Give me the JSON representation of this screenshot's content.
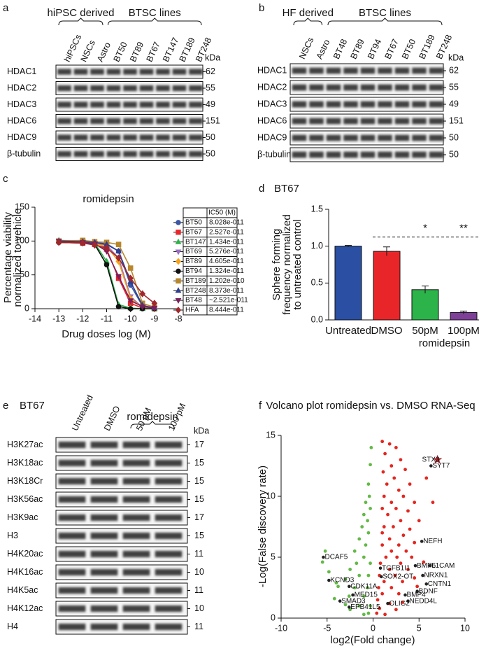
{
  "panels": [
    {
      "letter": "a",
      "groups": [
        "hiPSC derived",
        "BTSC lines"
      ],
      "lanes": [
        "hiPSCs",
        "NSCs",
        "Astro",
        "BT50",
        "BT89",
        "BT67",
        "BT147",
        "BT189",
        "BT248"
      ],
      "unit": "kDa",
      "rows": [
        {
          "label": "HDAC1",
          "kda": 62
        },
        {
          "label": "HDAC2",
          "kda": 55
        },
        {
          "label": "HDAC3",
          "kda": 49
        },
        {
          "label": "HDAC6",
          "kda": 151
        },
        {
          "label": "HDAC9",
          "kda": 50
        },
        {
          "label": "β-tubulin",
          "kda": 50
        }
      ]
    },
    {
      "letter": "b",
      "groups": [
        "HF derived",
        "BTSC lines"
      ],
      "lanes": [
        "NSCs",
        "Astro",
        "BT48",
        "BT89",
        "BT94",
        "BT67",
        "BT50",
        "BT189",
        "BT248"
      ],
      "unit": "kDa",
      "rows": [
        {
          "label": "HDAC1",
          "kda": 62
        },
        {
          "label": "HDAC2",
          "kda": 55
        },
        {
          "label": "HDAC3",
          "kda": 49
        },
        {
          "label": "HDAC6",
          "kda": 151
        },
        {
          "label": "HDAC9",
          "kda": 50
        },
        {
          "label": "β-tubulin",
          "kda": 50
        }
      ]
    },
    {
      "letter": "e",
      "title": "BT67",
      "groups": [
        "romidepsin"
      ],
      "lanes": [
        "Untreated",
        "DMSO",
        "50 pM",
        "100 pM"
      ],
      "unit": "kDa",
      "rows": [
        {
          "label": "H3K27ac",
          "kda": 17
        },
        {
          "label": "H3K18ac",
          "kda": 15
        },
        {
          "label": "H3K18Cr",
          "kda": 15
        },
        {
          "label": "H3K56ac",
          "kda": 15
        },
        {
          "label": "H3K9ac",
          "kda": 17
        },
        {
          "label": "H3",
          "kda": 15
        },
        {
          "label": "H4K20ac",
          "kda": 11
        },
        {
          "label": "H4K16ac",
          "kda": 10
        },
        {
          "label": "H4K5ac",
          "kda": 11
        },
        {
          "label": "H4K12ac",
          "kda": 10
        },
        {
          "label": "H4",
          "kda": 11
        }
      ]
    }
  ],
  "chart_data": [
    {
      "type": "line",
      "letter": "c",
      "title": "romidepsin",
      "x_label": "Drug doses log (M)",
      "y_label": [
        "Percentage viability",
        "normalized to vehicle"
      ],
      "xlim": [
        -14,
        -8
      ],
      "xticks": [
        -14,
        -13,
        -12,
        -11,
        -10,
        -9,
        -8
      ],
      "ylim": [
        0,
        150
      ],
      "yticks": [
        0,
        50,
        100,
        150
      ],
      "table_header": "IC50 (M)",
      "x": [
        -13,
        -12,
        -11.5,
        -11,
        -10.5,
        -10,
        -9.5,
        -9
      ],
      "series": [
        {
          "name": "BT50",
          "ic50": "8.028e-011",
          "color": "#3a56a5",
          "marker": "circle",
          "values": [
            100,
            99,
            98,
            96,
            85,
            35,
            4,
            1
          ]
        },
        {
          "name": "BT67",
          "ic50": "2.527e-011",
          "color": "#e8262a",
          "marker": "square",
          "values": [
            100,
            97,
            95,
            88,
            45,
            8,
            1,
            0
          ]
        },
        {
          "name": "BT147",
          "ic50": "1.434e-011",
          "color": "#2cb34a",
          "marker": "triangle",
          "values": [
            101,
            100,
            97,
            70,
            6,
            1,
            0,
            0
          ]
        },
        {
          "name": "BT69",
          "ic50": "5.276e-011",
          "color": "#9b6fc4",
          "marker": "triangle-down",
          "values": [
            100,
            99,
            97,
            94,
            75,
            18,
            2,
            0
          ]
        },
        {
          "name": "BT89",
          "ic50": "4.605e-011",
          "color": "#f7a21b",
          "marker": "diamond",
          "values": [
            100,
            98,
            96,
            92,
            70,
            15,
            2,
            0
          ]
        },
        {
          "name": "BT94",
          "ic50": "1.324e-011",
          "color": "#111111",
          "marker": "circle",
          "values": [
            98,
            97,
            95,
            65,
            3,
            0,
            0,
            0
          ]
        },
        {
          "name": "BT189",
          "ic50": "1.202e-010",
          "color": "#b8862b",
          "marker": "square",
          "values": [
            100,
            101,
            99,
            98,
            95,
            60,
            8,
            2
          ]
        },
        {
          "name": "BT248",
          "ic50": "8.373e-011",
          "color": "#2e3d8f",
          "marker": "triangle",
          "values": [
            100,
            99,
            98,
            95,
            85,
            40,
            5,
            1
          ]
        },
        {
          "name": "BT48",
          "ic50": "~2.521e-011",
          "color": "#7a1f5c",
          "marker": "triangle-down",
          "values": [
            100,
            98,
            96,
            85,
            48,
            12,
            3,
            1
          ]
        },
        {
          "name": "HFA",
          "ic50": "8.444e-011",
          "color": "#a0282d",
          "marker": "diamond",
          "values": [
            98,
            97,
            94,
            90,
            75,
            45,
            22,
            8
          ]
        }
      ]
    },
    {
      "type": "bar",
      "letter": "d",
      "title": "BT67",
      "y_label": [
        "Sphere forming",
        "frequency normalized",
        "to untreated control"
      ],
      "categories": [
        "Untreated",
        "DMSO",
        "50pM",
        "100pM"
      ],
      "x_group_label": "romidepsin",
      "values": [
        1.0,
        0.93,
        0.41,
        0.1
      ],
      "errors": [
        0.01,
        0.06,
        0.05,
        0.02
      ],
      "colors": [
        "#2a4fa3",
        "#e8262a",
        "#2cb34a",
        "#7e3f98"
      ],
      "significance": [
        null,
        null,
        "*",
        "**"
      ],
      "ylim": [
        0,
        1.5
      ],
      "yticks": [
        {
          "value": 0,
          "label": "0.0"
        },
        {
          "value": 0.5,
          "label": "0.5"
        },
        {
          "value": 1,
          "label": "1.0"
        },
        {
          "value": 1.5,
          "label": "1.5"
        }
      ]
    },
    {
      "type": "scatter",
      "letter": "f",
      "title": "Volcano plot romidepsin vs. DMSO RNA-Seq",
      "x_label": "log2(Fold change)",
      "y_label": "-Log(False discovery rate)",
      "xlim": [
        -10,
        10
      ],
      "xticks": [
        -10,
        -5,
        0,
        5,
        10
      ],
      "ylim": [
        0,
        15
      ],
      "yticks": [
        0,
        5,
        10,
        15
      ],
      "series": [
        {
          "color": "#63b946",
          "x": [
            -0.2,
            -0.3,
            -0.5,
            -0.4,
            -0.8,
            -0.3,
            -1,
            -0.6,
            -1.2,
            -0.5,
            -1.5,
            -0.8,
            -2,
            -1,
            -0.3,
            -1.8,
            -2.5,
            -0.5,
            -1.5,
            -3,
            -0.6,
            -2,
            -3.8,
            -1,
            -2.6,
            -4.2,
            -0.3,
            -1.5,
            -3,
            -0.5,
            -1,
            -5.2,
            -5.5,
            -4.8,
            -4,
            -2.5
          ],
          "values": [
            14,
            12.6,
            11,
            10,
            9.5,
            9,
            8.5,
            8,
            7.5,
            7,
            6.5,
            6,
            5.5,
            5,
            4.5,
            4.5,
            4,
            3.5,
            3.5,
            3.2,
            2.5,
            2.5,
            2.6,
            1.8,
            1.8,
            1.6,
            1,
            1,
            1.1,
            0.4,
            0.3,
            5.5,
            4.6,
            3.8,
            2.9,
            0.7
          ]
        },
        {
          "color": "#e4261f",
          "x": [
            1,
            1.8,
            2.5,
            1.3,
            3,
            2,
            1.1,
            3.5,
            2.3,
            4,
            1.5,
            2.8,
            1.2,
            3.3,
            2,
            4.5,
            1,
            2.5,
            3.8,
            1.6,
            3,
            5,
            1.2,
            2.2,
            4,
            1,
            3.3,
            1.8,
            2.8,
            4.5,
            1,
            2,
            3.6,
            1.4,
            2.6,
            4.2,
            0.8,
            3,
            5.5,
            1.8,
            3.8,
            0.7,
            2.4,
            4.5,
            1.2,
            3.2,
            0.6,
            2,
            4.8,
            1,
            2.8,
            0.5,
            1.8,
            3.2,
            0.7,
            2.5,
            0.4,
            1.3,
            6.5,
            5.8
          ],
          "values": [
            14.5,
            14.3,
            14,
            13.5,
            13,
            12.5,
            12,
            12.2,
            11.5,
            11,
            11,
            10.5,
            10,
            10,
            9.5,
            9.5,
            9,
            9,
            8.8,
            8.5,
            8,
            8,
            7.5,
            7.5,
            7.3,
            7,
            6.8,
            6.5,
            6,
            6.2,
            6,
            5.5,
            5.5,
            5,
            5,
            5,
            4.5,
            4.5,
            4.6,
            4,
            4,
            3.5,
            3.5,
            3.3,
            3,
            3,
            2.5,
            2.5,
            2.6,
            2,
            2,
            1.5,
            1.2,
            1.3,
            0.8,
            0.7,
            0.4,
            0.3,
            9.5,
            11.5
          ]
        }
      ],
      "gene_labels": [
        {
          "label": "STX3",
          "x": 7,
          "y": 13
        },
        {
          "label": "SYT7",
          "x": 6.3,
          "y": 12.5
        },
        {
          "label": "NEFH",
          "x": 5.3,
          "y": 6.3
        },
        {
          "label": "BMP6",
          "x": 4.6,
          "y": 4.3
        },
        {
          "label": "L1CAM",
          "x": 6.2,
          "y": 4.3
        },
        {
          "label": "NRXN1",
          "x": 5.4,
          "y": 3.5
        },
        {
          "label": "CNTN1",
          "x": 5.8,
          "y": 2.8
        },
        {
          "label": "BDNF",
          "x": 4.8,
          "y": 2.2
        },
        {
          "label": "BMP4",
          "x": 3.5,
          "y": 1.9
        },
        {
          "label": "NEDD4L",
          "x": 3.8,
          "y": 1.4
        },
        {
          "label": "OLIG2",
          "x": 1.6,
          "y": 1.2
        },
        {
          "label": "TGFB1I1",
          "x": 0.8,
          "y": 4.1
        },
        {
          "label": "SOX2-OT",
          "x": 0.9,
          "y": 3.4
        },
        {
          "label": "CDK11A",
          "x": -2.6,
          "y": 2.6
        },
        {
          "label": "MED15",
          "x": -2.2,
          "y": 1.9
        },
        {
          "label": "SMAD3",
          "x": -3.6,
          "y": 1.4
        },
        {
          "label": "EPB41L5",
          "x": -2.6,
          "y": 0.9
        },
        {
          "label": "KCND3",
          "x": -4.8,
          "y": 3.1
        },
        {
          "label": "DCAF5",
          "x": -5.4,
          "y": 5.0
        }
      ]
    }
  ]
}
